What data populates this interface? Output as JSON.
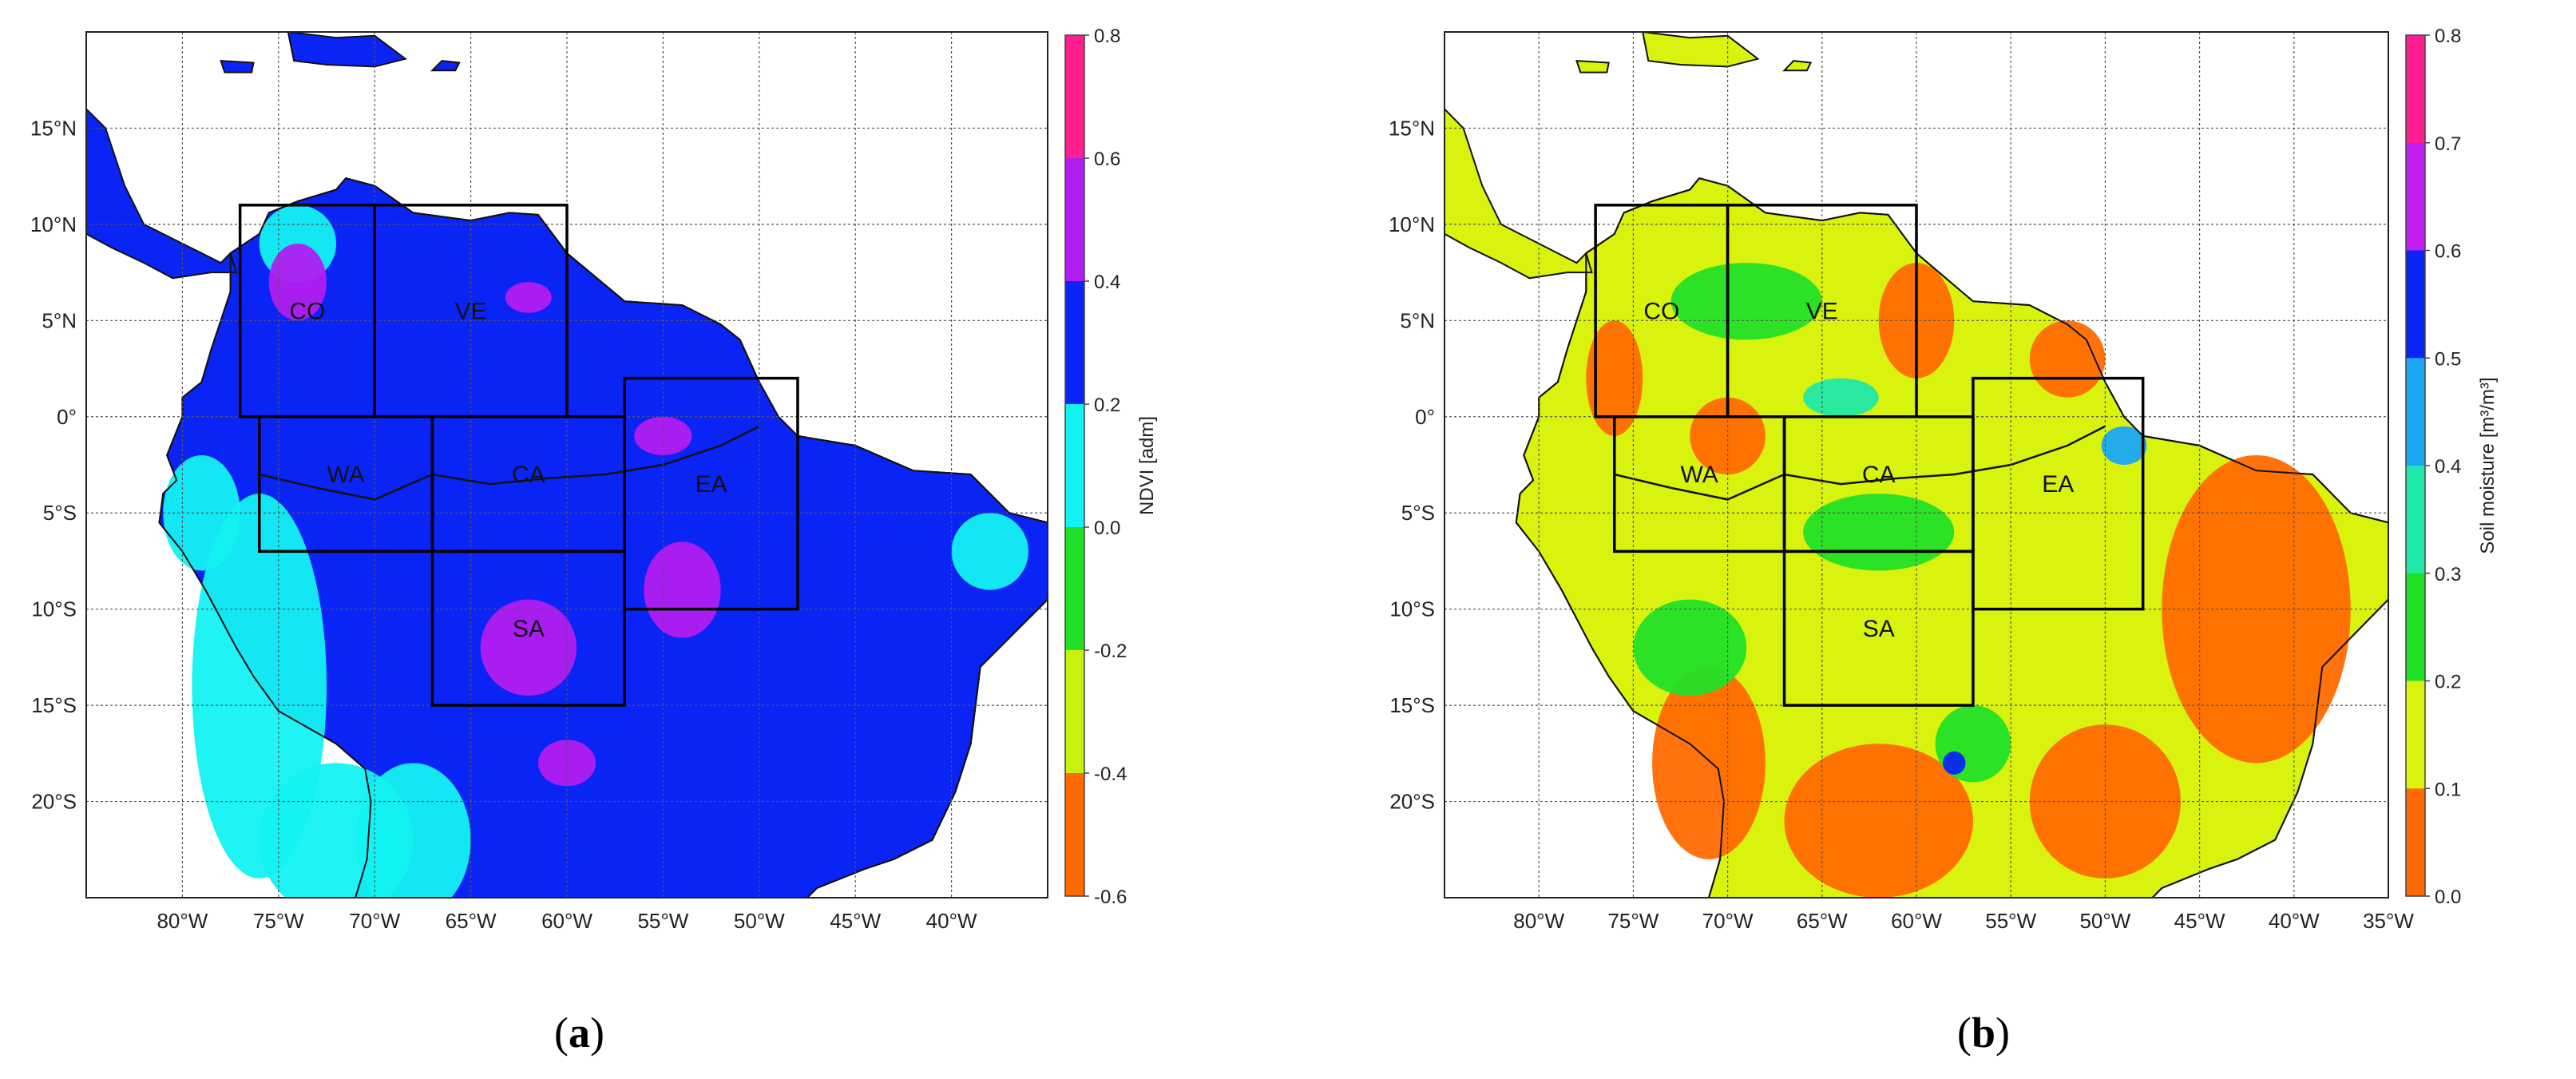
{
  "panels": [
    {
      "caption_open": "(",
      "caption_letter": "a",
      "caption_close": ")",
      "colorbar_label": "NDVI [adm]",
      "colorbar_ticks": [
        "0.8",
        "0.6",
        "0.4",
        "0.2",
        "0.0",
        "-0.2",
        "-0.4",
        "-0.6"
      ],
      "colorbar_colors": [
        "#ff1f8e",
        "#b21ef0",
        "#0a24f5",
        "#13f2f2",
        "#22e028",
        "#c6f20e",
        "#ff6a00"
      ],
      "background_color": "#0a24f5",
      "lon_labels": [
        "80°W",
        "75°W",
        "70°W",
        "65°W",
        "60°W",
        "55°W",
        "50°W",
        "45°W",
        "40°W"
      ],
      "lat_labels": [
        "15°N",
        "10°N",
        "5°N",
        "0°",
        "5°S",
        "10°S",
        "15°S",
        "20°S"
      ],
      "regions": [
        "CO",
        "VE",
        "WA",
        "CA",
        "EA",
        "SA"
      ]
    },
    {
      "caption_open": "(",
      "caption_letter": "b",
      "caption_close": ")",
      "colorbar_label": "Soil moisture [m³/m³]",
      "colorbar_ticks": [
        "0.8",
        "0.7",
        "0.6",
        "0.5",
        "0.4",
        "0.3",
        "0.2",
        "0.1",
        "0.0"
      ],
      "colorbar_colors": [
        "#ff1f8e",
        "#c11ef0",
        "#0a24f5",
        "#1aa6f5",
        "#20e8a8",
        "#22e028",
        "#d9f20e",
        "#ff6a00"
      ],
      "background_color": "#d9f20e",
      "lon_labels": [
        "80°W",
        "75°W",
        "70°W",
        "65°W",
        "60°W",
        "55°W",
        "50°W",
        "45°W",
        "40°W",
        "35°W"
      ],
      "lat_labels": [
        "15°N",
        "10°N",
        "5°N",
        "0°",
        "5°S",
        "10°S",
        "15°S",
        "20°S"
      ],
      "regions": [
        "CO",
        "VE",
        "WA",
        "CA",
        "EA",
        "SA"
      ]
    }
  ]
}
